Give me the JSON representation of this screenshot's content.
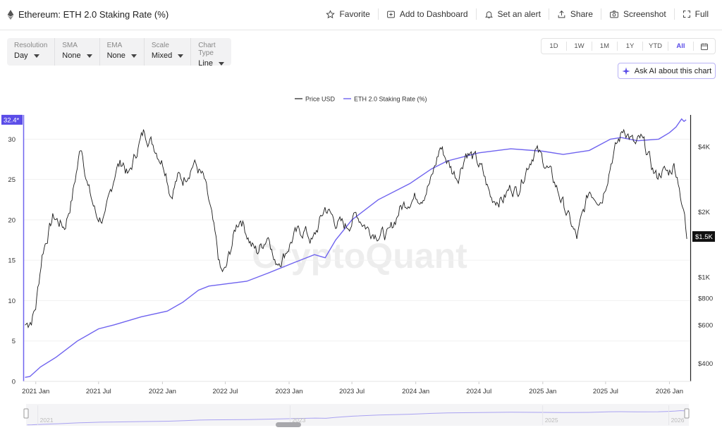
{
  "header": {
    "title": "Ethereum: ETH 2.0 Staking Rate (%)",
    "actions": [
      {
        "label": "Favorite",
        "icon": "star-icon"
      },
      {
        "label": "Add to Dashboard",
        "icon": "dashboard-add-icon"
      },
      {
        "label": "Set an alert",
        "icon": "bell-icon"
      },
      {
        "label": "Share",
        "icon": "share-icon"
      },
      {
        "label": "Screenshot",
        "icon": "camera-icon"
      },
      {
        "label": "Full",
        "icon": "fullscreen-icon"
      }
    ]
  },
  "controls": [
    {
      "label": "Resolution",
      "value": "Day"
    },
    {
      "label": "SMA",
      "value": "None"
    },
    {
      "label": "EMA",
      "value": "None"
    },
    {
      "label": "Scale",
      "value": "Mixed"
    },
    {
      "label": "Chart Type",
      "value": "Line"
    }
  ],
  "ranges": [
    "1D",
    "1W",
    "1M",
    "1Y",
    "YTD",
    "All"
  ],
  "active_range": "All",
  "ask_ai": "Ask AI about this chart",
  "watermark": "CryptoQuant",
  "colors": {
    "staking": "#6f63ef",
    "price": "#1a1a1a",
    "accent": "#5b4de8"
  },
  "chart_data": {
    "type": "line",
    "legend": [
      "Price USD",
      "ETH 2.0 Staking Rate (%)"
    ],
    "legend_position": "top-center",
    "x_ticks": [
      "2021 Jan",
      "2021 Jul",
      "2022 Jan",
      "2022 Jul",
      "2023 Jan",
      "2023 Jul",
      "2024 Jan",
      "2024 Jul",
      "2025 Jan",
      "2025 Jul",
      "2026 Jan"
    ],
    "x_range": [
      "2020-11-28",
      "2026-02-28"
    ],
    "left_axis": {
      "ticks": [
        0,
        5,
        10,
        15,
        20,
        25,
        30
      ],
      "range": [
        0,
        33
      ],
      "current_label": "32.4*"
    },
    "right_axis": {
      "scale": "log",
      "ticks": [
        "$400",
        "$600",
        "$800",
        "$1K",
        "$2K",
        "$4K"
      ],
      "tick_values": [
        400,
        600,
        800,
        1000,
        2000,
        4000
      ],
      "range": [
        330,
        5600
      ],
      "current_label": "$1.5K"
    },
    "series": [
      {
        "name": "ETH 2.0 Staking Rate (%)",
        "axis": "left",
        "points": [
          [
            "2020-12-01",
            0.5
          ],
          [
            "2020-12-15",
            0.6
          ],
          [
            "2021-01-15",
            1.8
          ],
          [
            "2021-03-01",
            3.0
          ],
          [
            "2021-05-01",
            5.0
          ],
          [
            "2021-07-01",
            6.5
          ],
          [
            "2021-08-15",
            7.0
          ],
          [
            "2021-11-01",
            8.0
          ],
          [
            "2022-01-15",
            8.7
          ],
          [
            "2022-03-01",
            9.8
          ],
          [
            "2022-04-15",
            11.3
          ],
          [
            "2022-05-15",
            11.8
          ],
          [
            "2022-09-01",
            12.4
          ],
          [
            "2022-11-01",
            13.4
          ],
          [
            "2023-01-15",
            14.7
          ],
          [
            "2023-03-15",
            15.7
          ],
          [
            "2023-04-15",
            15.3
          ],
          [
            "2023-05-15",
            17.5
          ],
          [
            "2023-07-01",
            20.0
          ],
          [
            "2023-09-15",
            22.5
          ],
          [
            "2023-12-15",
            24.5
          ],
          [
            "2024-02-15",
            26.3
          ],
          [
            "2024-04-01",
            27.3
          ],
          [
            "2024-07-01",
            28.3
          ],
          [
            "2024-10-01",
            28.8
          ],
          [
            "2025-01-01",
            28.5
          ],
          [
            "2025-03-01",
            28.1
          ],
          [
            "2025-05-15",
            28.6
          ],
          [
            "2025-07-15",
            30.0
          ],
          [
            "2025-08-15",
            30.2
          ],
          [
            "2025-10-01",
            29.8
          ],
          [
            "2025-12-01",
            30.0
          ],
          [
            "2026-01-01",
            30.8
          ],
          [
            "2026-01-20",
            31.5
          ],
          [
            "2026-02-05",
            32.5
          ],
          [
            "2026-02-12",
            32.2
          ],
          [
            "2026-02-18",
            32.4
          ]
        ]
      },
      {
        "name": "Price USD",
        "axis": "right",
        "points": [
          [
            "2020-12-01",
            600
          ],
          [
            "2020-12-20",
            640
          ],
          [
            "2021-01-01",
            730
          ],
          [
            "2021-01-20",
            1300
          ],
          [
            "2021-02-20",
            1900
          ],
          [
            "2021-03-25",
            1700
          ],
          [
            "2021-04-15",
            2300
          ],
          [
            "2021-05-12",
            4100
          ],
          [
            "2021-06-01",
            2600
          ],
          [
            "2021-06-25",
            1900
          ],
          [
            "2021-07-20",
            1850
          ],
          [
            "2021-08-20",
            3200
          ],
          [
            "2021-09-10",
            3400
          ],
          [
            "2021-09-25",
            2900
          ],
          [
            "2021-10-25",
            4100
          ],
          [
            "2021-11-10",
            4700
          ],
          [
            "2021-12-10",
            4000
          ],
          [
            "2022-01-10",
            3200
          ],
          [
            "2022-01-25",
            2400
          ],
          [
            "2022-02-15",
            2900
          ],
          [
            "2022-03-01",
            2800
          ],
          [
            "2022-04-01",
            3400
          ],
          [
            "2022-05-01",
            2800
          ],
          [
            "2022-05-20",
            2000
          ],
          [
            "2022-06-18",
            1050
          ],
          [
            "2022-07-01",
            1050
          ],
          [
            "2022-08-01",
            1700
          ],
          [
            "2022-08-15",
            1900
          ],
          [
            "2022-09-15",
            1400
          ],
          [
            "2022-10-01",
            1300
          ],
          [
            "2022-11-05",
            1600
          ],
          [
            "2022-11-20",
            1150
          ],
          [
            "2022-12-15",
            1250
          ],
          [
            "2023-01-15",
            1550
          ],
          [
            "2023-02-15",
            1650
          ],
          [
            "2023-03-10",
            1450
          ],
          [
            "2023-04-15",
            2100
          ],
          [
            "2023-05-15",
            1800
          ],
          [
            "2023-06-15",
            1700
          ],
          [
            "2023-07-15",
            1950
          ],
          [
            "2023-08-20",
            1650
          ],
          [
            "2023-09-15",
            1600
          ],
          [
            "2023-10-15",
            1550
          ],
          [
            "2023-11-15",
            2050
          ],
          [
            "2023-12-15",
            2300
          ],
          [
            "2024-01-20",
            2400
          ],
          [
            "2024-02-15",
            2800
          ],
          [
            "2024-03-12",
            4000
          ],
          [
            "2024-04-15",
            3100
          ],
          [
            "2024-05-01",
            2900
          ],
          [
            "2024-05-25",
            3800
          ],
          [
            "2024-06-20",
            3500
          ],
          [
            "2024-07-10",
            3100
          ],
          [
            "2024-08-05",
            2300
          ],
          [
            "2024-09-10",
            2300
          ],
          [
            "2024-10-01",
            2600
          ],
          [
            "2024-10-20",
            2500
          ],
          [
            "2024-11-15",
            3200
          ],
          [
            "2024-12-10",
            3900
          ],
          [
            "2025-01-10",
            3300
          ],
          [
            "2025-02-05",
            2700
          ],
          [
            "2025-03-10",
            2000
          ],
          [
            "2025-04-09",
            1500
          ],
          [
            "2025-05-15",
            2500
          ],
          [
            "2025-06-20",
            2300
          ],
          [
            "2025-07-20",
            3600
          ],
          [
            "2025-08-24",
            4900
          ],
          [
            "2025-09-10",
            4400
          ],
          [
            "2025-09-25",
            4000
          ],
          [
            "2025-10-10",
            4300
          ],
          [
            "2025-10-25",
            3900
          ],
          [
            "2025-11-15",
            3100
          ],
          [
            "2025-11-25",
            2900
          ],
          [
            "2025-12-10",
            3100
          ],
          [
            "2025-12-28",
            3000
          ],
          [
            "2026-01-15",
            3300
          ],
          [
            "2026-01-30",
            2700
          ],
          [
            "2026-02-05",
            2100
          ],
          [
            "2026-02-12",
            2000
          ],
          [
            "2026-02-20",
            1500
          ]
        ]
      }
    ],
    "navigator": {
      "years": [
        "2021",
        "2023",
        "2025",
        "2026"
      ],
      "prefix_years": [
        "2021",
        "2023",
        "2025",
        "2026"
      ]
    }
  }
}
